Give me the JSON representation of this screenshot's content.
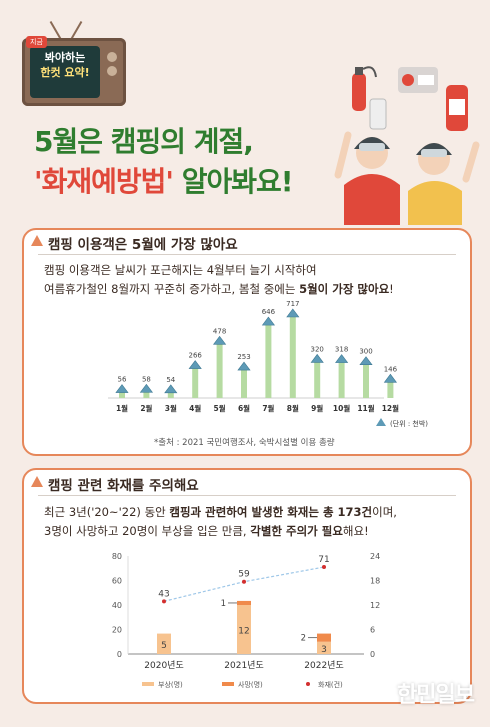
{
  "badge": {
    "tag": "지금",
    "line1": "봐야하는",
    "line2": "한컷 요약!"
  },
  "title": {
    "line1": "5월은 캠핑의 계절,",
    "line2_quote": "'화재예방법'",
    "line2_rest": " 알아봐요!"
  },
  "section1": {
    "heading": "캠핑 이용객은 5월에 가장 많아요",
    "desc_line1": "캠핑 이용객은 날씨가 포근해지는 4월부터 늘기 시작하여",
    "desc_line2_plain": "여름휴가철인 8월까지 꾸준히 증가하고, 봄철 중에는 ",
    "desc_line2_bold": "5월이 가장 많아요",
    "desc_line2_end": "!",
    "unit": "(단위 : 천박)",
    "source": "*출처 : 2021 국민여행조사, 숙박시설별 이용 총량"
  },
  "section2": {
    "heading": "캠핑 관련 화재를 주의해요",
    "desc_line1_a": "최근 3년('20~'22) 동안 ",
    "desc_line1_b": "캠핑과 관련하여 발생한 화재는 총 173건",
    "desc_line1_c": "이며,",
    "desc_line2_a": "3명이 사망하고 20명이 부상을 입은 만큼, ",
    "desc_line2_b": "각별한 주의가 필요",
    "desc_line2_c": "해요!"
  },
  "watermark": "한민일보",
  "colors": {
    "green": "#2f7d2f",
    "red": "#e0483a",
    "card_border": "#e6875a",
    "bar_green": "#b6dba2",
    "bar_orange": "#f7c38f",
    "bar_orange_dark": "#f08a4b",
    "fire_dot": "#d32f2f"
  },
  "chart_data": [
    {
      "type": "bar",
      "title": "",
      "categories": [
        "1월",
        "2월",
        "3월",
        "4월",
        "5월",
        "6월",
        "7월",
        "8월",
        "9월",
        "10월",
        "11월",
        "12월"
      ],
      "values": [
        56,
        58,
        54,
        266,
        478,
        253,
        646,
        717,
        320,
        318,
        300,
        146
      ],
      "unit": "(단위 : 천박)",
      "xlabel": "",
      "ylabel": "",
      "grid": false
    },
    {
      "type": "bar",
      "title": "",
      "categories": [
        "2020년도",
        "2021년도",
        "2022년도"
      ],
      "series": [
        {
          "name": "부상(명)",
          "kind": "bar",
          "axis": "right",
          "values": [
            5,
            12,
            3
          ],
          "color": "#f7c38f"
        },
        {
          "name": "사망(명)",
          "kind": "bar",
          "axis": "right",
          "values": [
            0,
            1,
            2
          ],
          "color": "#f08a4b"
        },
        {
          "name": "화재(건)",
          "kind": "line",
          "axis": "left",
          "values": [
            43,
            59,
            71
          ],
          "color": "#d32f2f"
        }
      ],
      "left_ticks": [
        0,
        20,
        40,
        60,
        80
      ],
      "right_ticks": [
        0,
        6,
        12,
        18,
        24
      ],
      "ylim_left": [
        0,
        80
      ],
      "ylim_right": [
        0,
        24
      ],
      "legend_position": "bottom",
      "grid": false
    }
  ]
}
